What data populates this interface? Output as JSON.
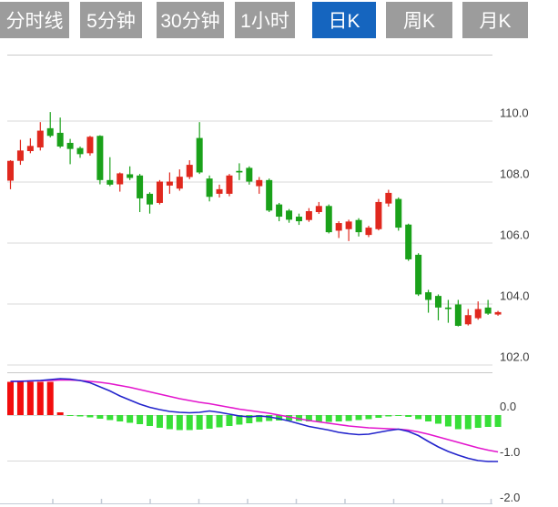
{
  "toolbar": {
    "tabs": [
      {
        "id": "minute-line",
        "label": "分时线",
        "active": false
      },
      {
        "id": "5min",
        "label": "5分钟",
        "active": false
      },
      {
        "id": "30min",
        "label": "30分钟",
        "active": false
      },
      {
        "id": "1hour",
        "label": "1小时",
        "active": false
      },
      {
        "id": "daily-k",
        "label": "日K",
        "active": true
      },
      {
        "id": "weekly-k",
        "label": "周K",
        "active": false
      },
      {
        "id": "monthly-k",
        "label": "月K",
        "active": false
      }
    ],
    "active_bg": "#1565bf",
    "inactive_bg": "#9c9c9c",
    "text_color": "#ffffff"
  },
  "chart_data": {
    "type": "candlestick",
    "title": "",
    "legend_position": "none",
    "grid": true,
    "price_axis": {
      "side": "right",
      "ticks": [
        110.0,
        108.0,
        106.0,
        104.0,
        102.0
      ],
      "labels": [
        "110.0",
        "108.0",
        "106.0",
        "104.0",
        "102.0"
      ],
      "range": [
        101.8,
        112.2
      ]
    },
    "macd_axis": {
      "side": "right",
      "ticks": [
        0.0,
        -1.0,
        -2.0
      ],
      "labels": [
        "0.0",
        "-1.0",
        "-2.0"
      ],
      "range": [
        0.96,
        -2.0
      ]
    },
    "x_axis": {
      "labels": [],
      "tick_count": 10
    },
    "colors": {
      "up": "#e0281e",
      "down": "#1aa11a",
      "hist_up": "#f20d0d",
      "hist_down": "#38df38",
      "dif_line": "#2324cc",
      "dea_line": "#e315cd",
      "grid": "#d9d9d9",
      "separator": "#c9c9c9",
      "axis": "#c3cbd6",
      "label": "#3c3c3c"
    },
    "candles_ohlc": [
      [
        108.03,
        108.7,
        107.75,
        108.68
      ],
      [
        108.68,
        109.37,
        108.55,
        109.02
      ],
      [
        109.0,
        109.42,
        108.93,
        109.17
      ],
      [
        109.12,
        109.95,
        109.02,
        109.67
      ],
      [
        109.75,
        110.28,
        109.45,
        109.5
      ],
      [
        109.6,
        110.1,
        109.1,
        109.15
      ],
      [
        109.27,
        109.4,
        108.57,
        109.07
      ],
      [
        109.1,
        109.15,
        108.78,
        108.9
      ],
      [
        108.93,
        109.5,
        108.85,
        109.47
      ],
      [
        109.5,
        109.52,
        107.91,
        108.05
      ],
      [
        108.05,
        108.8,
        107.85,
        107.9
      ],
      [
        107.91,
        108.3,
        107.67,
        108.27
      ],
      [
        108.24,
        108.5,
        108.05,
        108.12
      ],
      [
        108.2,
        108.25,
        107.0,
        107.45
      ],
      [
        107.6,
        107.65,
        106.95,
        107.25
      ],
      [
        107.3,
        108.05,
        107.25,
        108.0
      ],
      [
        107.87,
        108.3,
        107.6,
        108.0
      ],
      [
        107.77,
        108.4,
        107.7,
        108.16
      ],
      [
        108.15,
        108.7,
        108.08,
        108.55
      ],
      [
        109.43,
        109.95,
        108.25,
        108.3
      ],
      [
        108.1,
        108.2,
        107.35,
        107.5
      ],
      [
        107.6,
        107.9,
        107.48,
        107.75
      ],
      [
        107.6,
        108.25,
        107.52,
        108.2
      ],
      [
        108.35,
        108.6,
        108.05,
        108.3
      ],
      [
        108.45,
        108.5,
        107.9,
        108.0
      ],
      [
        107.85,
        108.15,
        107.6,
        108.05
      ],
      [
        108.05,
        108.1,
        107.0,
        107.05
      ],
      [
        107.25,
        107.3,
        106.7,
        106.85
      ],
      [
        107.05,
        107.1,
        106.65,
        106.75
      ],
      [
        106.85,
        106.95,
        106.58,
        106.7
      ],
      [
        106.74,
        107.13,
        106.68,
        107.03
      ],
      [
        107.0,
        107.33,
        106.94,
        107.2
      ],
      [
        107.2,
        107.25,
        106.3,
        106.34
      ],
      [
        106.39,
        106.7,
        106.15,
        106.64
      ],
      [
        106.44,
        106.75,
        106.05,
        106.69
      ],
      [
        106.74,
        106.8,
        106.2,
        106.34
      ],
      [
        106.25,
        106.55,
        106.18,
        106.49
      ],
      [
        106.44,
        107.43,
        106.4,
        107.33
      ],
      [
        107.28,
        107.73,
        107.18,
        107.63
      ],
      [
        107.43,
        107.48,
        106.39,
        106.49
      ],
      [
        106.59,
        106.62,
        105.4,
        105.45
      ],
      [
        105.6,
        105.65,
        104.25,
        104.3
      ],
      [
        104.37,
        104.45,
        103.7,
        104.12
      ],
      [
        104.25,
        104.3,
        103.45,
        103.87
      ],
      [
        103.87,
        104.12,
        103.37,
        103.82
      ],
      [
        103.97,
        104.12,
        103.25,
        103.27
      ],
      [
        103.32,
        103.82,
        103.28,
        103.62
      ],
      [
        103.52,
        104.07,
        103.47,
        103.82
      ],
      [
        103.87,
        104.12,
        103.63,
        103.67
      ],
      [
        103.64,
        103.76,
        103.6,
        103.72
      ]
    ],
    "macd": {
      "hist": [
        0.73,
        0.73,
        0.73,
        0.73,
        0.73,
        0.06,
        -0.02,
        -0.03,
        -0.05,
        -0.08,
        -0.11,
        -0.14,
        -0.17,
        -0.2,
        -0.24,
        -0.28,
        -0.31,
        -0.33,
        -0.33,
        -0.32,
        -0.3,
        -0.27,
        -0.24,
        -0.21,
        -0.18,
        -0.15,
        -0.13,
        -0.12,
        -0.12,
        -0.13,
        -0.14,
        -0.15,
        -0.15,
        -0.14,
        -0.13,
        -0.11,
        -0.09,
        -0.06,
        -0.03,
        -0.01,
        -0.04,
        -0.09,
        -0.14,
        -0.19,
        -0.25,
        -0.31,
        -0.31,
        -0.28,
        -0.26,
        -0.26
      ],
      "dif": [
        0.74,
        0.74,
        0.75,
        0.76,
        0.78,
        0.8,
        0.79,
        0.76,
        0.71,
        0.62,
        0.53,
        0.42,
        0.33,
        0.24,
        0.17,
        0.12,
        0.08,
        0.06,
        0.05,
        0.06,
        0.09,
        0.06,
        0.02,
        -0.02,
        -0.04,
        -0.02,
        -0.04,
        -0.08,
        -0.13,
        -0.19,
        -0.25,
        -0.29,
        -0.33,
        -0.38,
        -0.41,
        -0.43,
        -0.42,
        -0.38,
        -0.34,
        -0.31,
        -0.36,
        -0.45,
        -0.58,
        -0.7,
        -0.8,
        -0.88,
        -0.95,
        -1.0,
        -1.02,
        -1.02
      ],
      "dea": [
        0.74,
        0.745,
        0.75,
        0.755,
        0.76,
        0.77,
        0.77,
        0.76,
        0.74,
        0.72,
        0.69,
        0.65,
        0.61,
        0.56,
        0.51,
        0.46,
        0.41,
        0.36,
        0.32,
        0.28,
        0.25,
        0.21,
        0.17,
        0.13,
        0.1,
        0.07,
        0.04,
        0.0,
        -0.04,
        -0.08,
        -0.12,
        -0.15,
        -0.18,
        -0.21,
        -0.24,
        -0.26,
        -0.28,
        -0.29,
        -0.3,
        -0.31,
        -0.33,
        -0.37,
        -0.42,
        -0.48,
        -0.54,
        -0.6,
        -0.66,
        -0.72,
        -0.77,
        -0.81
      ]
    }
  }
}
